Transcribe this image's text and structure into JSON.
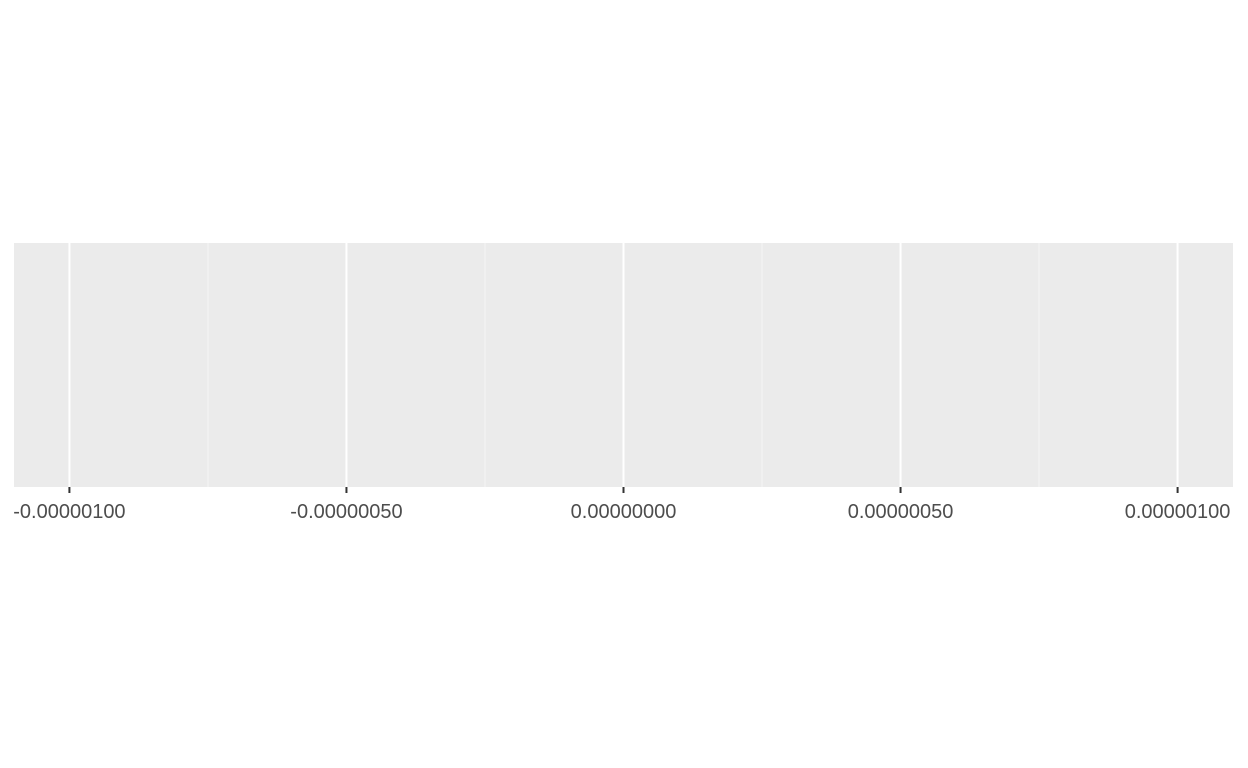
{
  "chart_data": {
    "type": "scatter",
    "title": "",
    "xlabel": "",
    "ylabel": "",
    "xlim": [
      -1.1e-06,
      1.1e-06
    ],
    "x_ticks": [
      -1e-06,
      -5e-07,
      0,
      5e-07,
      1e-06
    ],
    "x_tick_labels": [
      "-0.00000100",
      "-0.00000050",
      "0.00000000",
      "0.00000050",
      "0.00000100"
    ],
    "x_minor_ticks": [
      -7.5e-07,
      -2.5e-07,
      2.5e-07,
      7.5e-07
    ],
    "series": [],
    "grid": true,
    "legend": "none",
    "colors": {
      "panel_background": "#ebebeb",
      "grid_major": "#ffffff",
      "grid_minor": "#f5f5f5",
      "tick_mark": "#333333",
      "tick_label": "#4d4d4d"
    }
  }
}
